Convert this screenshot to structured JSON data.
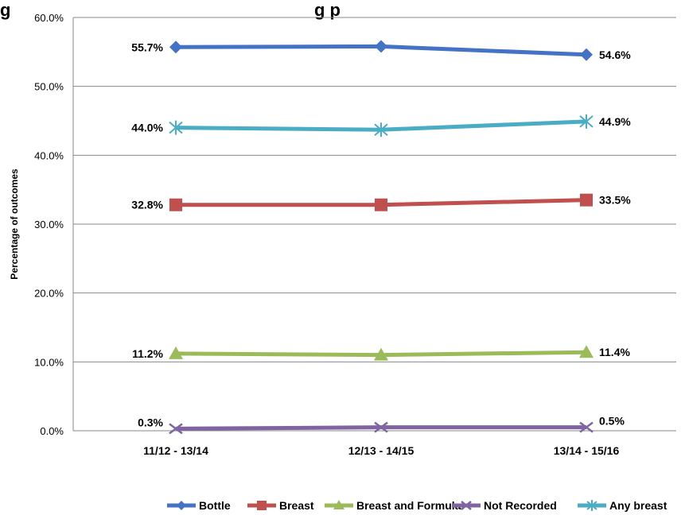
{
  "chart_data": {
    "type": "line",
    "title": "g",
    "title_suffix": "g p",
    "ylabel": "Percentage of outcomes",
    "xlabel": "",
    "categories": [
      "11/12 - 13/14",
      "12/13 - 14/15",
      "13/14 - 15/16"
    ],
    "ylim": [
      0,
      60
    ],
    "yticks": [
      "0.0%",
      "10.0%",
      "20.0%",
      "30.0%",
      "40.0%",
      "50.0%",
      "60.0%"
    ],
    "grid": true,
    "legend_position": "bottom",
    "series": [
      {
        "name": "Bottle",
        "color": "#4472C4",
        "marker": "diamond",
        "values": [
          55.7,
          55.8,
          54.6
        ],
        "labels": [
          "55.7%",
          "",
          "54.6%"
        ]
      },
      {
        "name": "Breast",
        "color": "#C0504D",
        "marker": "square",
        "values": [
          32.8,
          32.8,
          33.5
        ],
        "labels": [
          "32.8%",
          "",
          "33.5%"
        ]
      },
      {
        "name": "Breast and Formula",
        "color": "#9BBB59",
        "marker": "triangle",
        "values": [
          11.2,
          11.0,
          11.4
        ],
        "labels": [
          "11.2%",
          "",
          "11.4%"
        ]
      },
      {
        "name": "Not Recorded",
        "color": "#8064A2",
        "marker": "x",
        "values": [
          0.3,
          0.5,
          0.5
        ],
        "labels": [
          "0.3%",
          "",
          "0.5%"
        ]
      },
      {
        "name": "Any breast",
        "color": "#4BACC6",
        "marker": "star",
        "values": [
          44.0,
          43.7,
          44.9
        ],
        "labels": [
          "44.0%",
          "",
          "44.9%"
        ]
      }
    ]
  }
}
